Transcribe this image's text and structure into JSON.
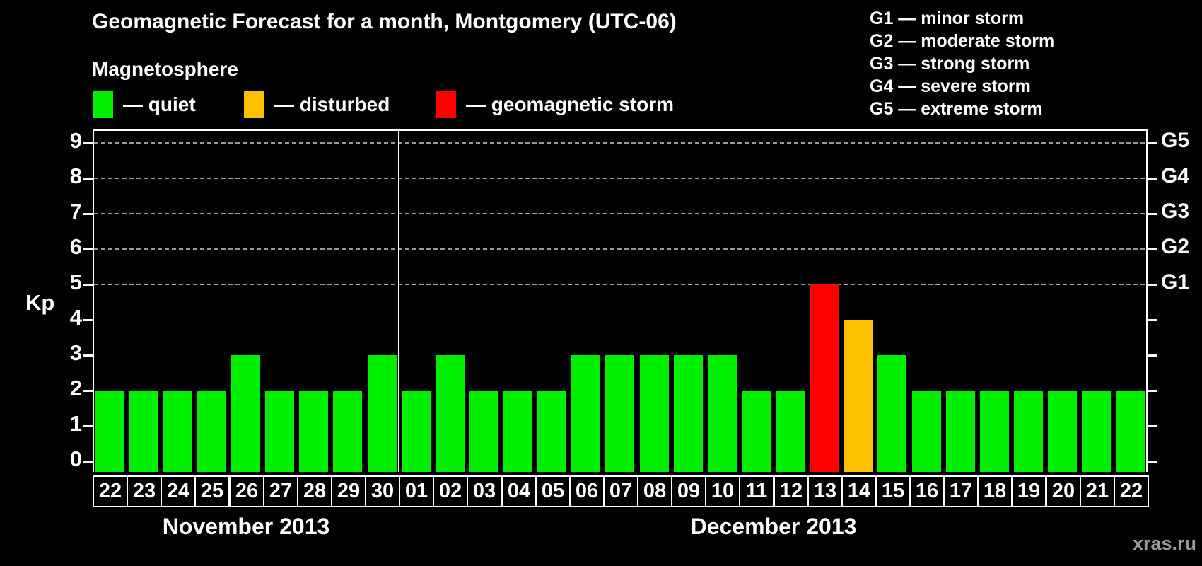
{
  "watermark": "xras.ru",
  "chart_data": {
    "type": "bar",
    "title": "Geomagnetic Forecast for a month, Montgomery (UTC-06)",
    "subtitle": "Magnetosphere",
    "ylabel": "Kp",
    "ylim": [
      0,
      9
    ],
    "yticks": [
      0,
      1,
      2,
      3,
      4,
      5,
      6,
      7,
      8,
      9
    ],
    "gridlines_at": [
      5,
      6,
      7,
      8,
      9
    ],
    "grid": "horizontal dashed lines only at storm levels Kp 5-9",
    "legend_position": "top-left",
    "colors": {
      "quiet": "#00ee00",
      "disturbed": "#ffc000",
      "storm": "#ff0000",
      "background": "#000000",
      "axis": "#ffffff",
      "gridline": "#9a9a9a",
      "watermark": "#9b9b9b"
    },
    "legend": [
      {
        "key": "quiet",
        "label": "— quiet"
      },
      {
        "key": "disturbed",
        "label": "— disturbed"
      },
      {
        "key": "storm",
        "label": "— geomagnetic storm"
      }
    ],
    "storm_scale": [
      "G1 — minor storm",
      "G2 — moderate storm",
      "G3 — strong storm",
      "G4 — severe storm",
      "G5 — extreme storm"
    ],
    "right_axis": [
      {
        "kp": 5,
        "label": "G1"
      },
      {
        "kp": 6,
        "label": "G2"
      },
      {
        "kp": 7,
        "label": "G3"
      },
      {
        "kp": 8,
        "label": "G4"
      },
      {
        "kp": 9,
        "label": "G5"
      }
    ],
    "months": [
      {
        "label": "November 2013",
        "count": 9
      },
      {
        "label": "December 2013",
        "count": 22
      }
    ],
    "bars": [
      {
        "day": "22",
        "month": "November 2013",
        "value": 2,
        "status": "quiet"
      },
      {
        "day": "23",
        "month": "November 2013",
        "value": 2,
        "status": "quiet"
      },
      {
        "day": "24",
        "month": "November 2013",
        "value": 2,
        "status": "quiet"
      },
      {
        "day": "25",
        "month": "November 2013",
        "value": 2,
        "status": "quiet"
      },
      {
        "day": "26",
        "month": "November 2013",
        "value": 3,
        "status": "quiet"
      },
      {
        "day": "27",
        "month": "November 2013",
        "value": 2,
        "status": "quiet"
      },
      {
        "day": "28",
        "month": "November 2013",
        "value": 2,
        "status": "quiet"
      },
      {
        "day": "29",
        "month": "November 2013",
        "value": 2,
        "status": "quiet"
      },
      {
        "day": "30",
        "month": "November 2013",
        "value": 3,
        "status": "quiet"
      },
      {
        "day": "01",
        "month": "December 2013",
        "value": 2,
        "status": "quiet"
      },
      {
        "day": "02",
        "month": "December 2013",
        "value": 3,
        "status": "quiet"
      },
      {
        "day": "03",
        "month": "December 2013",
        "value": 2,
        "status": "quiet"
      },
      {
        "day": "04",
        "month": "December 2013",
        "value": 2,
        "status": "quiet"
      },
      {
        "day": "05",
        "month": "December 2013",
        "value": 2,
        "status": "quiet"
      },
      {
        "day": "06",
        "month": "December 2013",
        "value": 3,
        "status": "quiet"
      },
      {
        "day": "07",
        "month": "December 2013",
        "value": 3,
        "status": "quiet"
      },
      {
        "day": "08",
        "month": "December 2013",
        "value": 3,
        "status": "quiet"
      },
      {
        "day": "09",
        "month": "December 2013",
        "value": 3,
        "status": "quiet"
      },
      {
        "day": "10",
        "month": "December 2013",
        "value": 3,
        "status": "quiet"
      },
      {
        "day": "11",
        "month": "December 2013",
        "value": 2,
        "status": "quiet"
      },
      {
        "day": "12",
        "month": "December 2013",
        "value": 2,
        "status": "quiet"
      },
      {
        "day": "13",
        "month": "December 2013",
        "value": 5,
        "status": "storm"
      },
      {
        "day": "14",
        "month": "December 2013",
        "value": 4,
        "status": "disturbed"
      },
      {
        "day": "15",
        "month": "December 2013",
        "value": 3,
        "status": "quiet"
      },
      {
        "day": "16",
        "month": "December 2013",
        "value": 2,
        "status": "quiet"
      },
      {
        "day": "17",
        "month": "December 2013",
        "value": 2,
        "status": "quiet"
      },
      {
        "day": "18",
        "month": "December 2013",
        "value": 2,
        "status": "quiet"
      },
      {
        "day": "19",
        "month": "December 2013",
        "value": 2,
        "status": "quiet"
      },
      {
        "day": "20",
        "month": "December 2013",
        "value": 2,
        "status": "quiet"
      },
      {
        "day": "21",
        "month": "December 2013",
        "value": 2,
        "status": "quiet"
      },
      {
        "day": "22",
        "month": "December 2013",
        "value": 2,
        "status": "quiet"
      }
    ]
  }
}
